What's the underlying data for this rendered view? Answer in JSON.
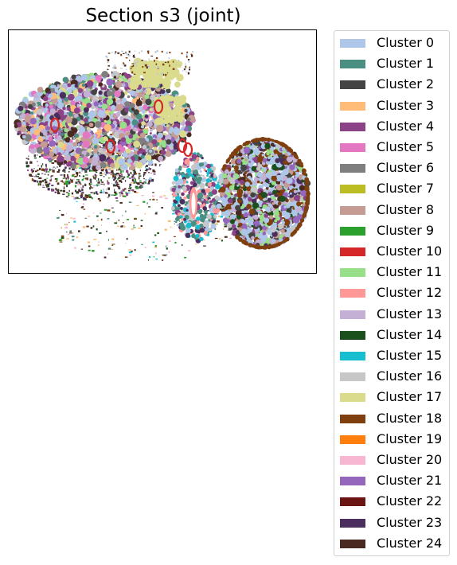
{
  "chart_data": {
    "type": "heatmap",
    "title": "Section s3 (joint)",
    "xlabel": "",
    "ylabel": "",
    "axes_ticks": "none",
    "legend_position": "outside-right",
    "clusters": [
      {
        "label": "Cluster 0",
        "color": "#aec7e8"
      },
      {
        "label": "Cluster 1",
        "color": "#4a8f82"
      },
      {
        "label": "Cluster 2",
        "color": "#444444"
      },
      {
        "label": "Cluster 3",
        "color": "#ffbb78"
      },
      {
        "label": "Cluster 4",
        "color": "#8c4286"
      },
      {
        "label": "Cluster 5",
        "color": "#e377c2"
      },
      {
        "label": "Cluster 6",
        "color": "#7f7f7f"
      },
      {
        "label": "Cluster 7",
        "color": "#bcbd22"
      },
      {
        "label": "Cluster 8",
        "color": "#c49c94"
      },
      {
        "label": "Cluster 9",
        "color": "#2ca02c"
      },
      {
        "label": "Cluster 10",
        "color": "#d62728"
      },
      {
        "label": "Cluster 11",
        "color": "#98df8a"
      },
      {
        "label": "Cluster 12",
        "color": "#ff9896"
      },
      {
        "label": "Cluster 13",
        "color": "#c5b0d5"
      },
      {
        "label": "Cluster 14",
        "color": "#1b4f1b"
      },
      {
        "label": "Cluster 15",
        "color": "#17becf"
      },
      {
        "label": "Cluster 16",
        "color": "#c7c7c7"
      },
      {
        "label": "Cluster 17",
        "color": "#dbdb8d"
      },
      {
        "label": "Cluster 18",
        "color": "#7f3f0f"
      },
      {
        "label": "Cluster 19",
        "color": "#ff7f0e"
      },
      {
        "label": "Cluster 20",
        "color": "#f7b6d2"
      },
      {
        "label": "Cluster 21",
        "color": "#9467bd"
      },
      {
        "label": "Cluster 22",
        "color": "#6b1414"
      },
      {
        "label": "Cluster 23",
        "color": "#4a2f5e"
      },
      {
        "label": "Cluster 24",
        "color": "#4a2a20"
      }
    ]
  }
}
